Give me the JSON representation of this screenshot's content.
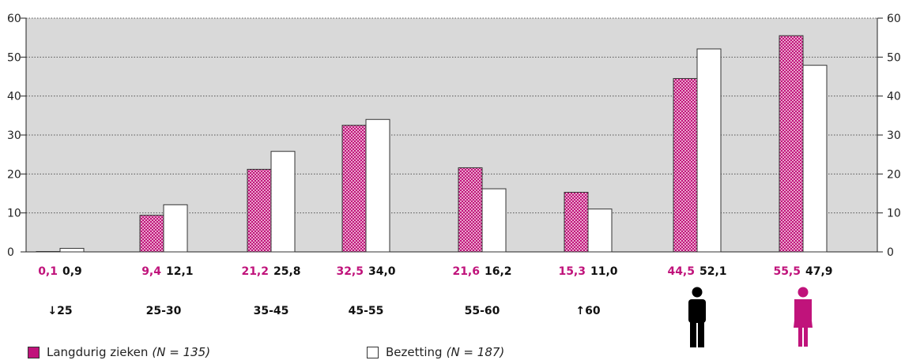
{
  "colors": {
    "ziek": "#c0137b",
    "bezetting": "#ffffff",
    "plot_bg": "#d9d9d9",
    "male_icon": "#000000",
    "female_icon": "#c0137b"
  },
  "legend": {
    "ziek_label": "Langdurig zieken",
    "ziek_note": "(N = 135)",
    "bezetting_label": "Bezetting",
    "bezetting_note": "(N = 187)"
  },
  "icons": {
    "male": "male-person-icon",
    "female": "female-person-icon"
  },
  "chart_data": {
    "type": "bar",
    "ylim": [
      0,
      60
    ],
    "yticks": [
      0,
      10,
      20,
      30,
      40,
      50,
      60
    ],
    "grid": true,
    "legend_position": "bottom-left",
    "groups": [
      {
        "category": "↓25",
        "ziek": 0.1,
        "bezetting": 0.9,
        "ziek_label": "0,1",
        "bezetting_label": "0,9"
      },
      {
        "category": "25-30",
        "ziek": 9.4,
        "bezetting": 12.1,
        "ziek_label": "9,4",
        "bezetting_label": "12,1"
      },
      {
        "category": "35-45",
        "ziek": 21.2,
        "bezetting": 25.8,
        "ziek_label": "21,2",
        "bezetting_label": "25,8"
      },
      {
        "category": "45-55",
        "ziek": 32.5,
        "bezetting": 34.0,
        "ziek_label": "32,5",
        "bezetting_label": "34,0"
      },
      {
        "category": "55-60",
        "ziek": 21.6,
        "bezetting": 16.2,
        "ziek_label": "21,6",
        "bezetting_label": "16,2"
      },
      {
        "category": "↑60",
        "ziek": 15.3,
        "bezetting": 11.0,
        "ziek_label": "15,3",
        "bezetting_label": "11,0"
      },
      {
        "category": "",
        "icon": "male-person-icon",
        "ziek": 44.5,
        "bezetting": 52.1,
        "ziek_label": "44,5",
        "bezetting_label": "52,1"
      },
      {
        "category": "",
        "icon": "female-person-icon",
        "ziek": 55.5,
        "bezetting": 47.9,
        "ziek_label": "55,5",
        "bezetting_label": "47,9"
      }
    ],
    "series": [
      {
        "name": "Langdurig zieken",
        "key": "ziek"
      },
      {
        "name": "Bezetting",
        "key": "bezetting"
      }
    ]
  }
}
